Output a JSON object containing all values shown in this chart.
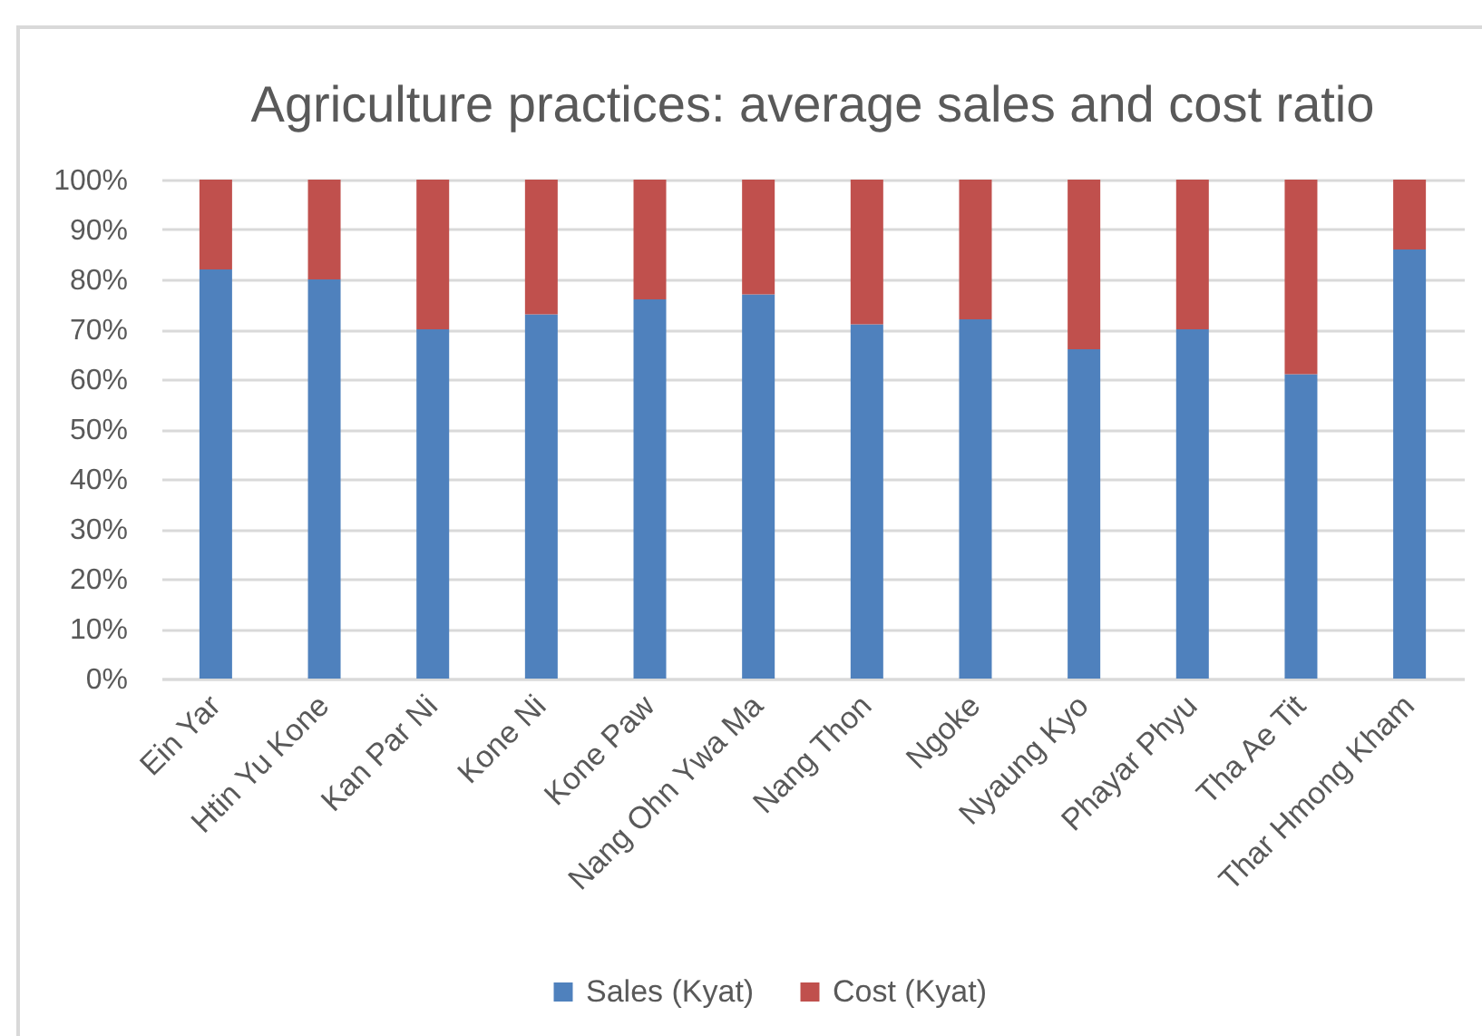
{
  "chart_data": {
    "type": "bar",
    "title": "Agriculture practices: average sales and cost ratio",
    "categories": [
      "Ein Yar",
      "Htin Yu Kone",
      "Kan Par Ni",
      "Kone Ni",
      "Kone Paw",
      "Nang Ohn Ywa Ma",
      "Nang Thon",
      "Ngoke",
      "Nyaung Kyo",
      "Phayar Phyu",
      "Tha Ae Tit",
      "Thar Hmong Kham"
    ],
    "series": [
      {
        "name": "Sales (Kyat)",
        "color": "#4f81bd",
        "values": [
          82,
          80,
          70,
          73,
          76,
          77,
          71,
          72,
          66,
          70,
          61,
          86
        ]
      },
      {
        "name": "Cost (Kyat)",
        "color": "#c0504d",
        "values": [
          18,
          20,
          30,
          27,
          24,
          23,
          29,
          28,
          34,
          30,
          39,
          14
        ]
      }
    ],
    "stacked": true,
    "ylim": [
      0,
      100
    ],
    "yticks": [
      {
        "value": 0,
        "label": "0%"
      },
      {
        "value": 10,
        "label": "10%"
      },
      {
        "value": 20,
        "label": "20%"
      },
      {
        "value": 30,
        "label": "30%"
      },
      {
        "value": 40,
        "label": "40%"
      },
      {
        "value": 50,
        "label": "50%"
      },
      {
        "value": 60,
        "label": "60%"
      },
      {
        "value": 70,
        "label": "70%"
      },
      {
        "value": 80,
        "label": "80%"
      },
      {
        "value": 90,
        "label": "90%"
      },
      {
        "value": 100,
        "label": "100%"
      }
    ],
    "grid": "y",
    "legend": "bottom"
  }
}
